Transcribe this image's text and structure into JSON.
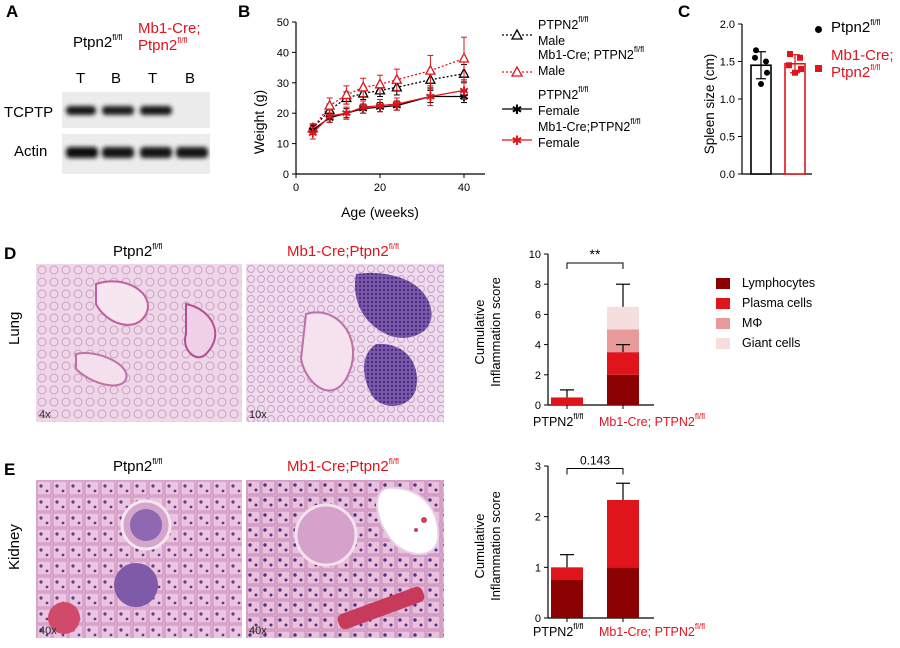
{
  "panels": {
    "a": "A",
    "b": "B",
    "c": "C",
    "d": "D",
    "e": "E"
  },
  "panelA": {
    "header_ctrl": "Ptpn2",
    "header_ctrl_sup": "fl/fl",
    "header_cre_line1": "Mb1-Cre;",
    "header_cre_line2": "Ptpn2",
    "header_cre_sup": "fl/fl",
    "lanes": [
      "T",
      "B",
      "T",
      "B"
    ],
    "rows": [
      "TCPTP",
      "Actin"
    ]
  },
  "panelB": {
    "ylabel": "Weight (g)",
    "xlabel": "Age (weeks)",
    "legend": [
      {
        "line1": "PTPN2",
        "sup": "fl/fl",
        "line2": "Male"
      },
      {
        "line1": "Mb1-Cre; PTPN2",
        "sup": "fl/fl",
        "line2": "Male"
      },
      {
        "line1": "PTPN2",
        "sup": "fl/fl",
        "line2": "Female"
      },
      {
        "line1": "Mb1-Cre;PTPN2",
        "sup": "fl/fl",
        "line2": "Female"
      }
    ]
  },
  "panelC": {
    "ylabel": "Spleen size (cm)",
    "legend_ctrl": "Ptpn2",
    "legend_ctrl_sup": "fl/fl",
    "legend_cre_line1": "Mb1-Cre;",
    "legend_cre_line2": "Ptpn2",
    "legend_cre_sup": "fl/fl"
  },
  "panelD": {
    "row_label": "Lung",
    "title_ctrl": "Ptpn2",
    "title_ctrl_sup": "fl/fl",
    "title_cre": "Mb1-Cre;Ptpn2",
    "title_cre_sup": "fl/fl",
    "mag_left": "4x",
    "mag_right": "10x",
    "ylabel_line1": "Cumulative",
    "ylabel_line2": "Inflammation score",
    "sig": "**",
    "xcat_ctrl": "PTPN2",
    "xcat_ctrl_sup": "fl/fl",
    "xcat_cre": "Mb1-Cre; PTPN2",
    "xcat_cre_sup": "fl/fl",
    "legend": [
      "Lymphocytes",
      "Plasma cells",
      "MΦ",
      "Giant cells"
    ]
  },
  "panelE": {
    "row_label": "Kidney",
    "title_ctrl": "Ptpn2",
    "title_ctrl_sup": "fl/fl",
    "title_cre": "Mb1-Cre;Ptpn2",
    "title_cre_sup": "fl/fl",
    "mag_left": "40x",
    "mag_right": "40x",
    "ylabel_line1": "Cumulative",
    "ylabel_line2": "Inflammation score",
    "pvalue": "0.143",
    "xcat_ctrl": "PTPN2",
    "xcat_ctrl_sup": "fl/fl",
    "xcat_cre": "Mb1-Cre; PTPN2",
    "xcat_cre_sup": "fl/fl"
  },
  "colors": {
    "lymph": "#8b0000",
    "plasma": "#e0141b",
    "mac": "#e89a9a",
    "giant": "#f7dede",
    "red": "#e0141b"
  },
  "chart_data": [
    {
      "type": "line",
      "x": [
        4,
        8,
        12,
        16,
        20,
        24,
        32,
        40
      ],
      "xlabel": "Age (weeks)",
      "ylabel": "Weight (g)",
      "xlim": [
        0,
        45
      ],
      "ylim": [
        0,
        50
      ],
      "xticks": [
        0,
        20,
        40
      ],
      "yticks": [
        0,
        10,
        20,
        30,
        40,
        50
      ],
      "series": [
        {
          "name": "PTPN2 fl/fl Male",
          "values": [
            15,
            21,
            25,
            26.5,
            27.5,
            28.5,
            31,
            33
          ],
          "err": [
            1.5,
            2,
            2,
            2,
            2,
            2.5,
            3,
            3
          ],
          "color": "#000000",
          "style": "dotted",
          "marker": "triangle"
        },
        {
          "name": "Mb1-Cre; PTPN2 fl/fl Male",
          "values": [
            15,
            22.5,
            26,
            28.5,
            29.5,
            31,
            34,
            38
          ],
          "err": [
            1.5,
            2.5,
            3,
            3,
            3,
            3.5,
            5,
            7
          ],
          "color": "#e0141b",
          "style": "dotted",
          "marker": "triangle"
        },
        {
          "name": "PTPN2 fl/fl Female",
          "values": [
            14.5,
            18.5,
            20,
            21.5,
            22,
            22.5,
            25.5,
            25.5
          ],
          "err": [
            1.5,
            1.5,
            1.5,
            1.5,
            1.5,
            1.5,
            2,
            2
          ],
          "color": "#000000",
          "style": "solid",
          "marker": "star"
        },
        {
          "name": "Mb1-Cre;PTPN2 fl/fl Female",
          "values": [
            13.5,
            19,
            20,
            22,
            22.5,
            23,
            25.5,
            27.5
          ],
          "err": [
            2,
            2,
            2,
            2,
            2,
            2,
            3,
            3
          ],
          "color": "#e0141b",
          "style": "solid",
          "marker": "star"
        }
      ]
    },
    {
      "type": "bar",
      "categories": [
        "Ptpn2 fl/fl",
        "Mb1-Cre; Ptpn2 fl/fl"
      ],
      "values": [
        1.45,
        1.47
      ],
      "err": [
        0.18,
        0.12
      ],
      "points": [
        [
          1.65,
          1.5,
          1.55,
          1.35,
          1.2
        ],
        [
          1.6,
          1.55,
          1.45,
          1.4,
          1.35
        ]
      ],
      "ylabel": "Spleen size (cm)",
      "ylim": [
        0,
        2.0
      ],
      "yticks": [
        0.0,
        0.5,
        1.0,
        1.5,
        2.0
      ]
    },
    {
      "type": "bar",
      "stacked": true,
      "categories": [
        "PTPN2 fl/fl",
        "Mb1-Cre; PTPN2 fl/fl"
      ],
      "ylim": [
        0,
        10
      ],
      "yticks": [
        0,
        2,
        4,
        6,
        8,
        10
      ],
      "series": [
        {
          "name": "Lymphocytes",
          "values": [
            0,
            2.0
          ]
        },
        {
          "name": "Plasma cells",
          "values": [
            0.5,
            1.5
          ]
        },
        {
          "name": "MΦ",
          "values": [
            0,
            1.5
          ]
        },
        {
          "name": "Giant cells",
          "values": [
            0,
            1.5
          ]
        }
      ],
      "err_top": [
        0.5,
        1.5
      ],
      "err_mid": [
        null,
        0.5
      ],
      "significance": "**"
    },
    {
      "type": "bar",
      "stacked": true,
      "categories": [
        "PTPN2 fl/fl",
        "Mb1-Cre; PTPN2 fl/fl"
      ],
      "ylim": [
        0,
        3
      ],
      "yticks": [
        0,
        1,
        2,
        3
      ],
      "series": [
        {
          "name": "Lymphocytes",
          "values": [
            0.75,
            1.0
          ]
        },
        {
          "name": "Plasma cells",
          "values": [
            0.25,
            1.33
          ]
        }
      ],
      "err_top": [
        0.25,
        0.33
      ],
      "pvalue": "0.143"
    }
  ]
}
